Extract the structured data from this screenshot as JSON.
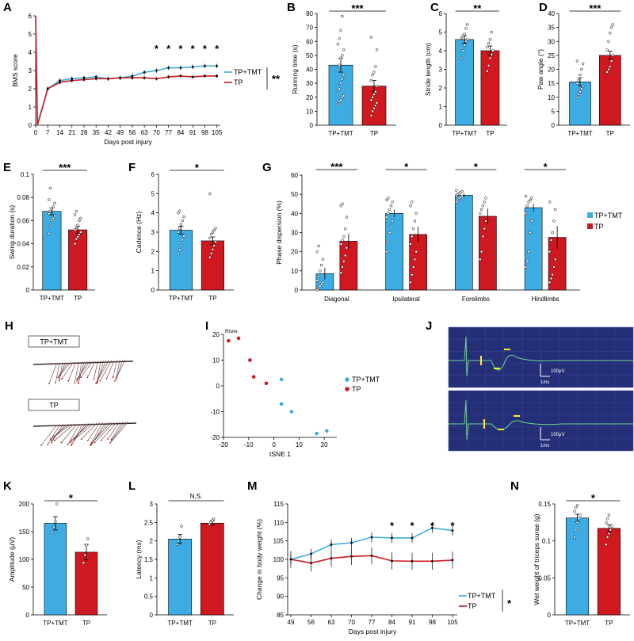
{
  "colors": {
    "tmt": "#3cace3",
    "tp": "#d01820",
    "marker": "#ffee22",
    "eeg_bg": "#252f78",
    "eeg_line": "#6fd48e"
  },
  "chart_data": [
    {
      "id": "A",
      "type": "line",
      "title": "",
      "xlabel": "Days post injury",
      "ylabel": "BMS score",
      "ylim": [
        0,
        6
      ],
      "xticks": [
        0,
        7,
        14,
        21,
        28,
        35,
        42,
        49,
        56,
        63,
        70,
        77,
        84,
        91,
        98,
        105
      ],
      "yticks": [
        0,
        1,
        2,
        3,
        4,
        5,
        6
      ],
      "x": [
        0,
        1,
        7,
        14,
        21,
        28,
        35,
        42,
        49,
        56,
        63,
        70,
        77,
        84,
        91,
        98,
        105
      ],
      "series": [
        {
          "name": "TP+TMT",
          "values": [
            6,
            0,
            2,
            2.45,
            2.55,
            2.6,
            2.65,
            2.55,
            2.6,
            2.7,
            2.9,
            3.0,
            3.15,
            3.15,
            3.2,
            3.25,
            3.25
          ],
          "err": 0.12
        },
        {
          "name": "TP",
          "values": [
            6,
            0,
            2,
            2.35,
            2.45,
            2.5,
            2.55,
            2.55,
            2.6,
            2.6,
            2.6,
            2.55,
            2.65,
            2.7,
            2.65,
            2.7,
            2.7
          ],
          "err": 0.1
        }
      ],
      "sig_labels": [
        "*",
        "*",
        "*",
        "*",
        "*",
        "*"
      ],
      "sig_x": [
        70,
        77,
        84,
        91,
        98,
        105
      ],
      "group_sig": "**"
    },
    {
      "id": "B",
      "type": "bar",
      "categories": [
        "TP+TMT",
        "TP"
      ],
      "values": [
        43,
        28
      ],
      "err": [
        5,
        4
      ],
      "ylabel": "Running time (s)",
      "ylim": [
        0,
        80
      ],
      "yticks": [
        0,
        10,
        20,
        30,
        40,
        50,
        60,
        70,
        80
      ],
      "sig": "***",
      "points": [
        [
          15,
          17,
          18,
          20,
          21,
          23,
          26,
          30,
          33,
          36,
          40,
          43,
          48,
          50,
          54,
          58,
          62,
          68,
          78
        ],
        [
          7,
          10,
          12,
          14,
          16,
          18,
          20,
          22,
          24,
          28,
          32,
          36,
          38,
          42,
          54,
          63
        ]
      ]
    },
    {
      "id": "C",
      "type": "bar",
      "categories": [
        "TP+TMT",
        "TP"
      ],
      "values": [
        4.6,
        4.0
      ],
      "err": [
        0.2,
        0.25
      ],
      "ylabel": "Stride length (cm)",
      "ylim": [
        0,
        6
      ],
      "yticks": [
        0,
        1,
        2,
        3,
        4,
        5,
        6
      ],
      "sig": "**",
      "points": [
        [
          3.6,
          4.0,
          4.3,
          4.5,
          4.6,
          4.7,
          4.8,
          4.9,
          5.2,
          5.4
        ],
        [
          2.9,
          3.2,
          3.6,
          3.8,
          4.0,
          4.2,
          4.4,
          4.6,
          5.0
        ]
      ]
    },
    {
      "id": "D",
      "type": "bar",
      "categories": [
        "TP+TMT",
        "TP"
      ],
      "values": [
        15.5,
        25
      ],
      "err": [
        1.5,
        1.5
      ],
      "ylabel": "Paw angle (°)",
      "ylim": [
        0,
        40
      ],
      "yticks": [
        0,
        5,
        10,
        15,
        20,
        25,
        30,
        35,
        40
      ],
      "sig": "***",
      "points": [
        [
          10,
          11,
          12,
          13,
          14,
          15,
          16,
          18,
          20,
          22,
          23
        ],
        [
          19,
          20,
          21,
          23,
          25,
          27,
          30,
          33,
          35,
          36
        ]
      ]
    },
    {
      "id": "E",
      "type": "bar",
      "categories": [
        "TP+TMT",
        "TP"
      ],
      "values": [
        0.068,
        0.052
      ],
      "err": [
        0.003,
        0.003
      ],
      "ylabel": "Swing duration (s)",
      "ylim": [
        0,
        0.1
      ],
      "yticks": [
        0,
        0.02,
        0.04,
        0.06,
        0.08,
        0.1
      ],
      "ytick_labels": [
        "0",
        "0.02",
        "0.04",
        "0.06",
        "0.08",
        "0.1"
      ],
      "sig": "***",
      "points": [
        [
          0.049,
          0.055,
          0.06,
          0.062,
          0.064,
          0.066,
          0.068,
          0.07,
          0.072,
          0.075,
          0.078,
          0.088
        ],
        [
          0.04,
          0.044,
          0.046,
          0.048,
          0.05,
          0.052,
          0.054,
          0.056,
          0.06,
          0.062,
          0.065,
          0.068
        ]
      ]
    },
    {
      "id": "F",
      "type": "bar",
      "categories": [
        "TP+TMT",
        "TP"
      ],
      "values": [
        3.1,
        2.55
      ],
      "err": [
        0.2,
        0.2
      ],
      "ylabel": "Cadence (Hz)",
      "ylim": [
        0,
        6
      ],
      "yticks": [
        0,
        1,
        2,
        3,
        4,
        5,
        6
      ],
      "sig": "*",
      "points": [
        [
          1.9,
          2.1,
          2.3,
          2.6,
          2.8,
          3.0,
          3.2,
          3.4,
          3.6,
          3.8,
          4.0,
          4.1
        ],
        [
          1.7,
          1.9,
          2.1,
          2.3,
          2.5,
          2.7,
          2.9,
          3.0,
          3.1,
          3.2,
          5.0
        ]
      ]
    },
    {
      "id": "G",
      "type": "bar",
      "categories": [
        "Diagonal",
        "Ipsilateral",
        "Forelimbs",
        "Hindlimbs"
      ],
      "ylabel": "Phase dispersion (%)",
      "ylim": [
        0,
        60
      ],
      "yticks": [
        0,
        10,
        20,
        30,
        40,
        50,
        60
      ],
      "series": [
        {
          "name": "TP+TMT",
          "values": [
            8.5,
            40,
            49.5,
            43
          ],
          "err": [
            3,
            2,
            1,
            2
          ]
        },
        {
          "name": "TP",
          "values": [
            25.5,
            29,
            38.5,
            27.5
          ],
          "err": [
            4,
            4,
            4,
            6
          ]
        }
      ],
      "sig": [
        "***",
        "*",
        "*",
        "*"
      ],
      "points_tmt": [
        [
          0,
          1,
          2,
          3,
          4,
          5,
          7,
          10,
          13,
          16,
          20,
          23
        ],
        [
          20,
          25,
          30,
          33,
          36,
          38,
          40,
          42,
          44,
          46,
          47,
          48
        ],
        [
          46,
          47,
          48,
          48.5,
          49,
          49.5,
          50,
          50.5,
          51,
          51.5,
          52
        ],
        [
          12,
          15,
          20,
          30,
          36,
          40,
          44,
          46,
          47,
          48,
          49
        ]
      ],
      "points_tp": [
        [
          9,
          12,
          15,
          18,
          22,
          24,
          26,
          28,
          32,
          38,
          44,
          45
        ],
        [
          4,
          8,
          12,
          16,
          20,
          24,
          28,
          32,
          36,
          40,
          44,
          46
        ],
        [
          16,
          20,
          28,
          32,
          36,
          40,
          42,
          44,
          46,
          48
        ],
        [
          4,
          6,
          8,
          12,
          16,
          20,
          26,
          30,
          36,
          42,
          46
        ]
      ]
    },
    {
      "id": "I",
      "type": "scatter",
      "xlabel": "tSNE 1",
      "ylabel": "",
      "title": "Rtsne",
      "xlim": [
        -20,
        25
      ],
      "ylim": [
        -20,
        20
      ],
      "xticks": [
        -20,
        -10,
        0,
        10,
        20
      ],
      "yticks": [
        -20,
        -10,
        0,
        10,
        20
      ],
      "series": [
        {
          "name": "TP+TMT",
          "x": [
            3,
            3,
            7,
            17,
            21
          ],
          "y": [
            2.5,
            -7,
            -10,
            -18.5,
            -17.5
          ]
        },
        {
          "name": "TP",
          "x": [
            -18,
            -14,
            -9.5,
            -8,
            -3
          ],
          "y": [
            17.5,
            18.5,
            10,
            3.5,
            1
          ]
        }
      ]
    },
    {
      "id": "K",
      "type": "bar",
      "categories": [
        "TP+TMT",
        "TP"
      ],
      "values": [
        165,
        113
      ],
      "err": [
        12,
        14
      ],
      "ylabel": "Amplitude (μV)",
      "ylim": [
        0,
        200
      ],
      "yticks": [
        0,
        50,
        100,
        150,
        200
      ],
      "sig": "*",
      "points": [
        [
          148,
          158,
          168,
          200
        ],
        [
          94,
          108,
          126,
          137
        ]
      ]
    },
    {
      "id": "L",
      "type": "bar",
      "categories": [
        "TP+TMT",
        "TP"
      ],
      "values": [
        2.05,
        2.48
      ],
      "err": [
        0.12,
        0.06
      ],
      "ylabel": "Latency (ms)",
      "ylim": [
        0,
        3
      ],
      "yticks": [
        0,
        0.5,
        1,
        1.5,
        2,
        2.5,
        3
      ],
      "ytick_labels": [
        "0",
        "0.5",
        "1",
        "1.5",
        "2",
        "2.5",
        "3"
      ],
      "sig": "N.S.",
      "points": [
        [
          1.9,
          2.0,
          2.1,
          2.4
        ],
        [
          2.45,
          2.5,
          2.55,
          2.6
        ]
      ]
    },
    {
      "id": "M",
      "type": "line",
      "xlabel": "Days post injury",
      "ylabel": "Change in body weight (%)",
      "ylim": [
        85,
        115
      ],
      "yticks": [
        85,
        90,
        95,
        100,
        105,
        110,
        115
      ],
      "xticks": [
        49,
        56,
        63,
        70,
        77,
        84,
        91,
        98,
        105
      ],
      "x": [
        49,
        56,
        63,
        70,
        77,
        84,
        91,
        98,
        105
      ],
      "series": [
        {
          "name": "TP+TMT",
          "values": [
            100,
            101.5,
            104,
            104.5,
            106,
            105.8,
            105.8,
            108.5,
            107.8
          ],
          "err": 1.3
        },
        {
          "name": "TP",
          "values": [
            100,
            99,
            100.3,
            100.8,
            101,
            99.6,
            99.5,
            99.5,
            99.8
          ],
          "err": 2.3
        }
      ],
      "sig_labels": [
        "*",
        "*",
        "*",
        "*"
      ],
      "sig_x": [
        84,
        91,
        98,
        105
      ],
      "group_sig": "*"
    },
    {
      "id": "N",
      "type": "bar",
      "categories": [
        "TP+TMT",
        "TP"
      ],
      "values": [
        0.131,
        0.117
      ],
      "err": [
        0.005,
        0.005
      ],
      "ylabel": "Wet weight of triceps surae (g)",
      "ylim": [
        0,
        0.15
      ],
      "yticks": [
        0,
        0.05,
        0.1,
        0.15
      ],
      "ytick_labels": [
        "0",
        "0.05",
        "0.1",
        "0.15"
      ],
      "sig": "*",
      "points": [
        [
          0.105,
          0.115,
          0.125,
          0.13,
          0.135,
          0.14,
          0.145,
          0.148
        ],
        [
          0.095,
          0.105,
          0.11,
          0.115,
          0.12,
          0.125,
          0.13,
          0.135
        ]
      ]
    }
  ],
  "panel_labels": {
    "A": "A",
    "B": "B",
    "C": "C",
    "D": "D",
    "E": "E",
    "F": "F",
    "G": "G",
    "H": "H",
    "I": "I",
    "J": "J",
    "K": "K",
    "L": "L",
    "M": "M",
    "N": "N"
  },
  "panel_h": {
    "label_top": "TP+TMT",
    "label_bottom": "TP"
  },
  "panel_j": {
    "scale_uv": "100μV",
    "scale_ms": "1ms"
  }
}
